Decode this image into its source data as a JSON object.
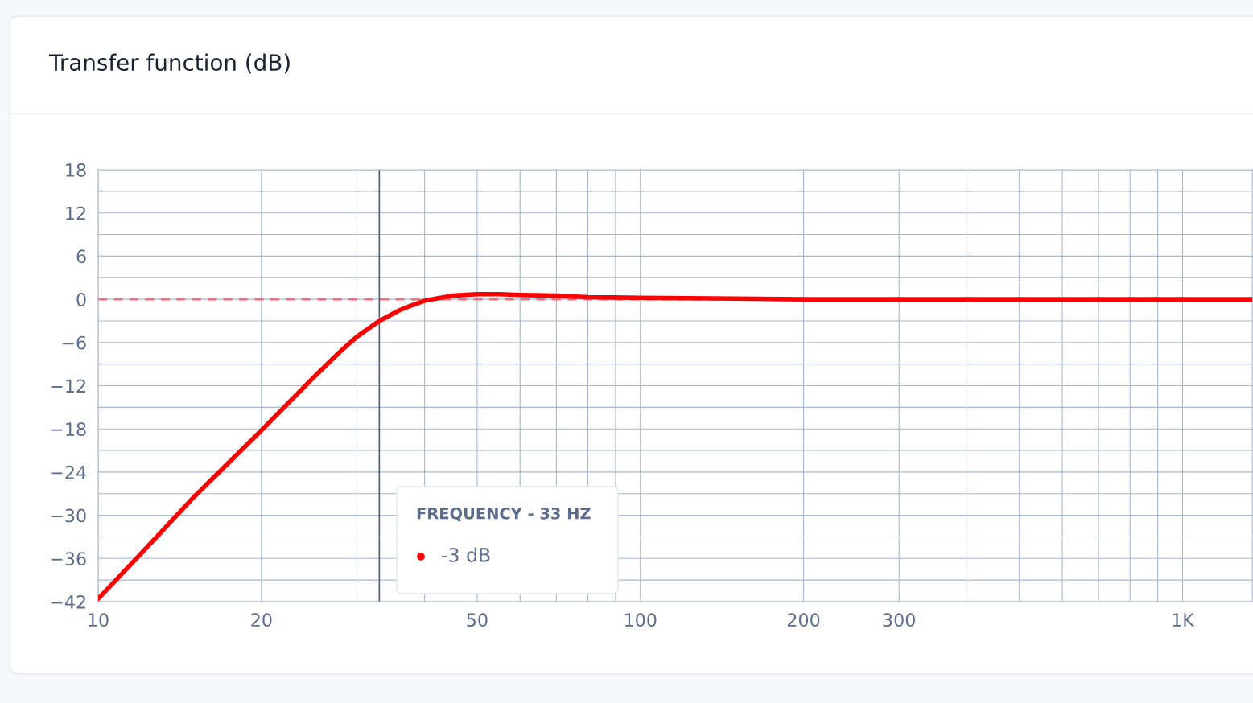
{
  "chart_data": {
    "type": "line",
    "title": "Transfer function (dB)",
    "x": [
      10,
      12,
      15,
      20,
      25,
      28,
      30,
      33,
      36,
      38,
      40,
      42,
      45,
      50,
      55,
      60,
      70,
      80,
      100,
      150,
      200,
      500,
      1000,
      1345
    ],
    "series": [
      {
        "color": "#ff0000",
        "values": [
          -41.6,
          -35.3,
          -27.5,
          -18.2,
          -10.8,
          -7.2,
          -5.2,
          -3,
          -1.5,
          -0.8,
          -0.2,
          0.1,
          0.5,
          0.7,
          0.7,
          0.6,
          0.5,
          0.3,
          0.2,
          0.1,
          0,
          0,
          0,
          0
        ]
      }
    ],
    "log": "x",
    "xlim": [
      10,
      1345
    ],
    "ylim": [
      -42,
      18
    ],
    "xticks": [
      10,
      20,
      {
        "value": 30,
        "label": null
      },
      {
        "value": 40,
        "label": null
      },
      50,
      {
        "value": 60,
        "label": null
      },
      {
        "value": 70,
        "label": null
      },
      {
        "value": 80,
        "label": null
      },
      {
        "value": 90,
        "label": null
      },
      100,
      200,
      300,
      {
        "value": 400,
        "label": null
      },
      {
        "value": 500,
        "label": null
      },
      {
        "value": 600,
        "label": null
      },
      {
        "value": 700,
        "label": null
      },
      {
        "value": 800,
        "label": null
      },
      {
        "value": 900,
        "label": null
      },
      {
        "value": 1000,
        "label": "1K"
      }
    ],
    "yticks": [
      -42,
      {
        "value": -39,
        "label": null
      },
      -36,
      {
        "value": -33,
        "label": null
      },
      -30,
      {
        "value": -27,
        "label": null
      },
      -24,
      {
        "value": -21,
        "label": null
      },
      -18,
      {
        "value": -15,
        "label": null
      },
      -12,
      {
        "value": -9,
        "label": null
      },
      -6,
      {
        "value": -3,
        "label": null
      },
      0,
      {
        "value": 3,
        "label": null
      },
      6,
      {
        "value": 9,
        "label": null
      },
      12,
      {
        "value": 15,
        "label": null
      },
      18
    ],
    "grid": true,
    "legend": false,
    "ref_lines": [
      {
        "axis": "y",
        "value": 0,
        "color": "#f07080",
        "line_style": "dashed"
      },
      {
        "axis": "x",
        "value": 33,
        "color": "#4a5f80",
        "line_style": "solid"
      }
    ],
    "annotations": [
      "FREQUENCY - 33 HZ",
      "-3 dB"
    ]
  }
}
